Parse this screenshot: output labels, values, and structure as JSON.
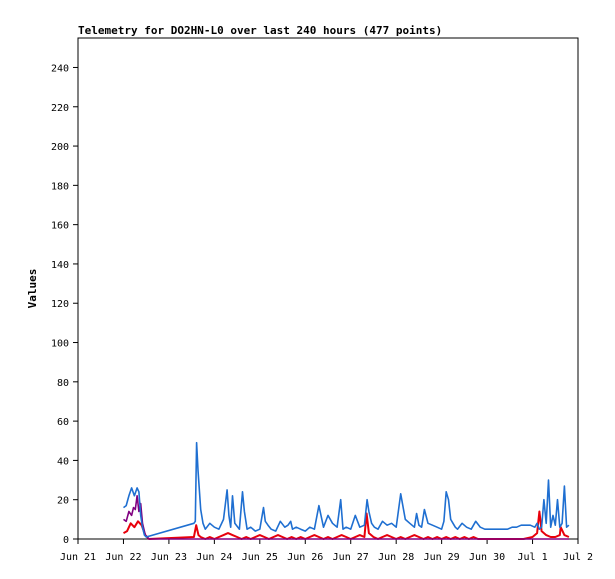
{
  "chart_data": {
    "type": "line",
    "title": "Telemetry for DO2HN-L0 over last 240 hours (477 points)",
    "xlabel": "",
    "ylabel": "Values",
    "ylim": [
      0,
      255
    ],
    "xlim": [
      "Jun 21",
      "Jul 2"
    ],
    "x_ticks": [
      "Jun 21",
      "Jun 22",
      "Jun 23",
      "Jun 24",
      "Jun 25",
      "Jun 26",
      "Jun 27",
      "Jun 28",
      "Jun 29",
      "Jun 30",
      "Jul 1",
      "Jul 2"
    ],
    "y_ticks": [
      0,
      20,
      40,
      60,
      80,
      100,
      120,
      140,
      160,
      180,
      200,
      220,
      240
    ],
    "grid": false,
    "legend": "none",
    "series": [
      {
        "color": "#1f6fd1",
        "x": [
          1.0,
          1.06,
          1.12,
          1.18,
          1.24,
          1.3,
          1.34,
          1.38,
          1.42,
          1.46,
          1.5,
          2.55,
          2.58,
          2.61,
          2.64,
          2.7,
          2.75,
          2.8,
          2.9,
          3.0,
          3.1,
          3.2,
          3.28,
          3.32,
          3.36,
          3.4,
          3.45,
          3.55,
          3.62,
          3.66,
          3.72,
          3.8,
          3.9,
          4.0,
          4.08,
          4.12,
          4.18,
          4.25,
          4.35,
          4.45,
          4.55,
          4.62,
          4.68,
          4.72,
          4.8,
          4.9,
          5.0,
          5.1,
          5.2,
          5.3,
          5.4,
          5.5,
          5.6,
          5.7,
          5.78,
          5.83,
          5.9,
          6.0,
          6.1,
          6.2,
          6.3,
          6.36,
          6.4,
          6.46,
          6.52,
          6.6,
          6.7,
          6.8,
          6.9,
          7.0,
          7.1,
          7.2,
          7.3,
          7.4,
          7.45,
          7.5,
          7.56,
          7.62,
          7.7,
          7.8,
          7.9,
          8.0,
          8.05,
          8.1,
          8.15,
          8.2,
          8.25,
          8.3,
          8.35,
          8.45,
          8.55,
          8.65,
          8.75,
          8.85,
          8.95,
          9.05,
          9.15,
          9.25,
          9.35,
          9.45,
          9.55,
          9.65,
          9.75,
          9.85,
          9.95,
          10.05,
          10.1,
          10.15,
          10.2,
          10.25,
          10.3,
          10.35,
          10.4,
          10.45,
          10.5,
          10.55,
          10.6,
          10.65,
          10.7,
          10.75,
          10.8
        ],
        "y": [
          16,
          17,
          22,
          26,
          22,
          26,
          24,
          12,
          6,
          2,
          1,
          8,
          9,
          49,
          35,
          15,
          8,
          5,
          8,
          6,
          5,
          10,
          25,
          12,
          6,
          22,
          8,
          5,
          24,
          14,
          5,
          6,
          4,
          5,
          16,
          9,
          7,
          5,
          4,
          9,
          6,
          7,
          9,
          5,
          6,
          5,
          4,
          6,
          5,
          17,
          6,
          12,
          8,
          6,
          20,
          5,
          6,
          5,
          12,
          6,
          7,
          20,
          14,
          8,
          6,
          5,
          9,
          7,
          8,
          6,
          23,
          10,
          8,
          6,
          13,
          7,
          6,
          15,
          8,
          7,
          6,
          5,
          9,
          24,
          20,
          10,
          8,
          6,
          5,
          8,
          6,
          5,
          9,
          6,
          5,
          5,
          5,
          5,
          5,
          5,
          6,
          6,
          7,
          7,
          7,
          6,
          8,
          5,
          6,
          20,
          8,
          30,
          6,
          12,
          7,
          20,
          6,
          8,
          27,
          6,
          7
        ]
      },
      {
        "color": "#e8000b",
        "x": [
          1.0,
          1.08,
          1.16,
          1.24,
          1.32,
          1.4,
          1.48,
          1.56,
          2.55,
          2.6,
          2.65,
          2.7,
          2.8,
          2.9,
          3.0,
          3.1,
          3.2,
          3.3,
          3.4,
          3.5,
          3.6,
          3.7,
          3.8,
          3.9,
          4.0,
          4.1,
          4.2,
          4.3,
          4.4,
          4.5,
          4.6,
          4.7,
          4.8,
          4.9,
          5.0,
          5.1,
          5.2,
          5.3,
          5.4,
          5.5,
          5.6,
          5.7,
          5.8,
          5.9,
          6.0,
          6.1,
          6.2,
          6.3,
          6.35,
          6.4,
          6.5,
          6.6,
          6.7,
          6.8,
          6.9,
          7.0,
          7.1,
          7.2,
          7.3,
          7.4,
          7.5,
          7.6,
          7.7,
          7.8,
          7.9,
          8.0,
          8.1,
          8.2,
          8.3,
          8.4,
          8.5,
          8.6,
          8.7,
          8.8,
          8.9,
          9.0,
          9.2,
          9.4,
          9.6,
          9.8,
          10.0,
          10.1,
          10.15,
          10.2,
          10.3,
          10.4,
          10.5,
          10.6,
          10.62,
          10.7,
          10.8
        ],
        "y": [
          3,
          4,
          8,
          6,
          9,
          7,
          2,
          0,
          1,
          7,
          2,
          1,
          0,
          1,
          0,
          1,
          2,
          3,
          2,
          1,
          0,
          1,
          0,
          1,
          2,
          1,
          0,
          1,
          2,
          1,
          0,
          1,
          0,
          1,
          0,
          1,
          2,
          1,
          0,
          1,
          0,
          1,
          2,
          1,
          0,
          1,
          2,
          1,
          13,
          3,
          1,
          0,
          1,
          2,
          1,
          0,
          1,
          0,
          1,
          2,
          1,
          0,
          1,
          0,
          1,
          0,
          1,
          0,
          1,
          0,
          1,
          0,
          1,
          0,
          0,
          0,
          0,
          0,
          0,
          0,
          1,
          3,
          14,
          4,
          2,
          1,
          1,
          2,
          6,
          2,
          1
        ]
      },
      {
        "color": "#800080",
        "x": [
          1.0,
          1.06,
          1.12,
          1.18,
          1.22,
          1.26,
          1.3,
          1.34,
          1.38,
          1.42,
          1.48,
          1.56,
          10.8
        ],
        "y": [
          10,
          9,
          14,
          12,
          16,
          15,
          22,
          14,
          18,
          8,
          2,
          0,
          0
        ]
      }
    ]
  }
}
